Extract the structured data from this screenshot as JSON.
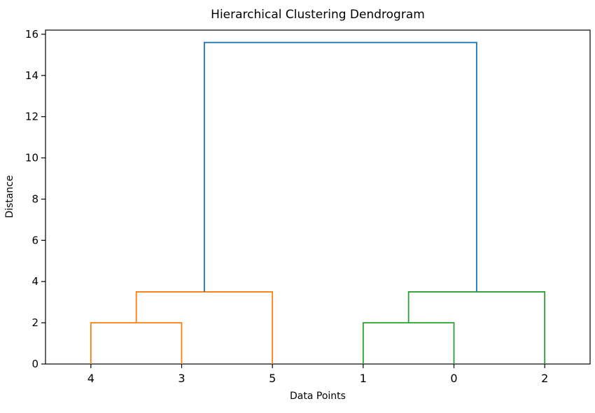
{
  "chart_data": {
    "type": "dendrogram",
    "title": "Hierarchical Clustering Dendrogram",
    "xlabel": "Data Points",
    "ylabel": "Distance",
    "leaf_labels": [
      "4",
      "3",
      "5",
      "1",
      "0",
      "2"
    ],
    "leaf_positions": [
      5,
      15,
      25,
      35,
      45,
      55
    ],
    "xlim": [
      0,
      60
    ],
    "ylim": [
      0,
      16.2
    ],
    "yticks": [
      0,
      2,
      4,
      6,
      8,
      10,
      12,
      14,
      16
    ],
    "grid": false,
    "legend": null,
    "links": [
      {
        "cluster": "left-orange",
        "x1": 5,
        "x2": 15,
        "base1": 0,
        "base2": 0,
        "height": 2.0,
        "color": "#ff7f0e"
      },
      {
        "cluster": "left-orange",
        "x1": 10,
        "x2": 25,
        "base1": 2.0,
        "base2": 0,
        "height": 3.5,
        "color": "#ff7f0e"
      },
      {
        "cluster": "right-green",
        "x1": 35,
        "x2": 45,
        "base1": 0,
        "base2": 0,
        "height": 2.0,
        "color": "#2ca02c"
      },
      {
        "cluster": "right-green",
        "x1": 40,
        "x2": 55,
        "base1": 2.0,
        "base2": 0,
        "height": 3.5,
        "color": "#2ca02c"
      },
      {
        "cluster": "root-blue",
        "x1": 17.5,
        "x2": 47.5,
        "base1": 3.5,
        "base2": 3.5,
        "height": 15.6,
        "color": "#1f77b4"
      }
    ],
    "colors": {
      "root_link": "#1f77b4",
      "left_cluster": "#ff7f0e",
      "right_cluster": "#2ca02c",
      "axis": "#000000",
      "background": "#ffffff"
    }
  }
}
